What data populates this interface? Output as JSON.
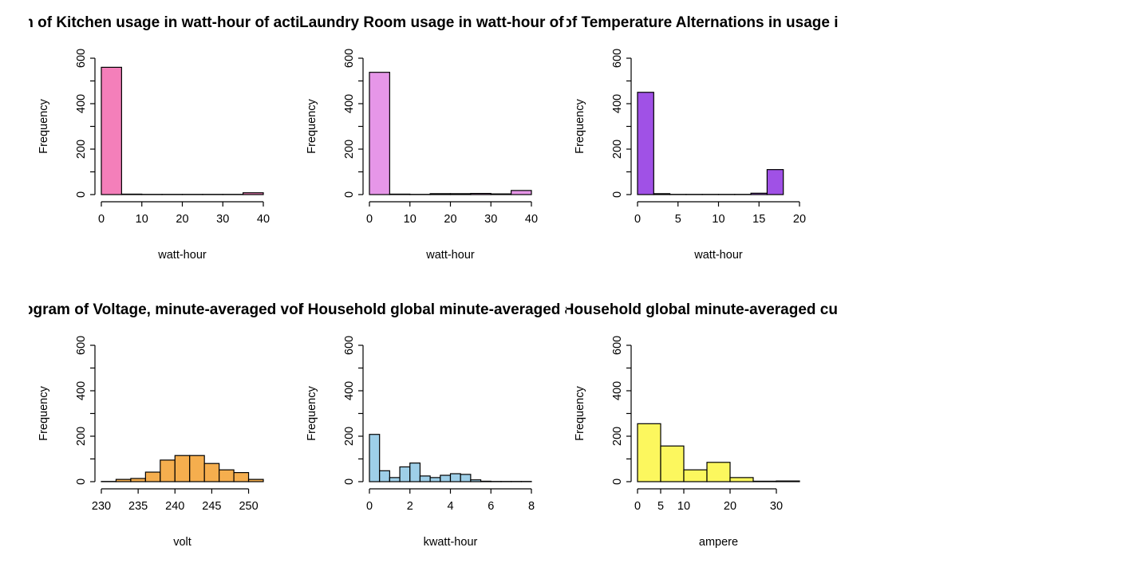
{
  "chart_data": [
    {
      "type": "bar",
      "title": "Histogram of Kitchen usage in watt-hour of active energy",
      "xlabel": "watt-hour",
      "ylabel": "Frequency",
      "color": "#F47FBA",
      "bins": [
        [
          0,
          5
        ],
        [
          5,
          10
        ],
        [
          10,
          15
        ],
        [
          15,
          20
        ],
        [
          20,
          25
        ],
        [
          25,
          30
        ],
        [
          30,
          35
        ],
        [
          35,
          40
        ]
      ],
      "values": [
        560,
        2,
        1,
        1,
        1,
        1,
        1,
        8
      ],
      "xlim": [
        0,
        40
      ],
      "ylim": [
        0,
        600
      ],
      "xticks": [
        0,
        10,
        20,
        30,
        40
      ],
      "yticks": [
        0,
        200,
        400,
        600
      ],
      "yminor": [
        100,
        300,
        500
      ]
    },
    {
      "type": "bar",
      "title": "Histogram of Laundry Room usage in watt-hour of active energy",
      "xlabel": "watt-hour",
      "ylabel": "Frequency",
      "color": "#E696E8",
      "bins": [
        [
          0,
          5
        ],
        [
          5,
          10
        ],
        [
          10,
          15
        ],
        [
          15,
          20
        ],
        [
          20,
          25
        ],
        [
          25,
          30
        ],
        [
          30,
          35
        ],
        [
          35,
          40
        ]
      ],
      "values": [
        538,
        2,
        1,
        4,
        4,
        5,
        3,
        18
      ],
      "xlim": [
        0,
        40
      ],
      "ylim": [
        0,
        600
      ],
      "xticks": [
        0,
        10,
        20,
        30,
        40
      ],
      "yticks": [
        0,
        200,
        400,
        600
      ],
      "yminor": [
        100,
        300,
        500
      ]
    },
    {
      "type": "bar",
      "title": "Histogram of Temperature Alternations in usage in watt-hour",
      "xlabel": "watt-hour",
      "ylabel": "Frequency",
      "color": "#A051E6",
      "bins": [
        [
          0,
          2
        ],
        [
          2,
          4
        ],
        [
          4,
          6
        ],
        [
          6,
          8
        ],
        [
          8,
          10
        ],
        [
          10,
          12
        ],
        [
          12,
          14
        ],
        [
          14,
          16
        ],
        [
          16,
          18
        ],
        [
          18,
          20
        ]
      ],
      "values": [
        450,
        4,
        1,
        1,
        1,
        1,
        1,
        6,
        110,
        0
      ],
      "xlim": [
        0,
        20
      ],
      "ylim": [
        0,
        600
      ],
      "xticks": [
        0,
        5,
        10,
        15,
        20
      ],
      "yticks": [
        0,
        200,
        400,
        600
      ],
      "yminor": [
        100,
        300,
        500
      ]
    },
    {
      "type": "bar",
      "title": "Histogram of Voltage, minute-averaged voltage",
      "xlabel": "volt",
      "ylabel": "Frequency",
      "color": "#F5AE4E",
      "bins": [
        [
          230,
          232
        ],
        [
          232,
          234
        ],
        [
          234,
          236
        ],
        [
          236,
          238
        ],
        [
          238,
          240
        ],
        [
          240,
          242
        ],
        [
          242,
          244
        ],
        [
          244,
          246
        ],
        [
          246,
          248
        ],
        [
          248,
          250
        ],
        [
          250,
          252
        ]
      ],
      "values": [
        1,
        10,
        14,
        42,
        95,
        115,
        115,
        80,
        52,
        40,
        10
      ],
      "xlim": [
        230,
        252
      ],
      "ylim": [
        0,
        600
      ],
      "xticks": [
        230,
        235,
        240,
        245,
        250
      ],
      "yticks": [
        0,
        200,
        400,
        600
      ],
      "yminor": [
        100,
        300,
        500
      ]
    },
    {
      "type": "bar",
      "title": "Histogram of Household global minute-averaged active power",
      "xlabel": "kwatt-hour",
      "ylabel": "Frequency",
      "color": "#9ECFE8",
      "bins": [
        [
          0,
          0.5
        ],
        [
          0.5,
          1
        ],
        [
          1,
          1.5
        ],
        [
          1.5,
          2
        ],
        [
          2,
          2.5
        ],
        [
          2.5,
          3
        ],
        [
          3,
          3.5
        ],
        [
          3.5,
          4
        ],
        [
          4,
          4.5
        ],
        [
          4.5,
          5
        ],
        [
          5,
          5.5
        ],
        [
          5.5,
          6
        ],
        [
          6,
          6.5
        ],
        [
          6.5,
          7
        ],
        [
          7,
          7.5
        ],
        [
          7.5,
          8
        ]
      ],
      "values": [
        208,
        48,
        18,
        65,
        82,
        25,
        18,
        28,
        35,
        32,
        8,
        2,
        1,
        1,
        1,
        1
      ],
      "xlim": [
        0,
        8
      ],
      "ylim": [
        0,
        600
      ],
      "xticks": [
        0,
        2,
        4,
        6,
        8
      ],
      "yticks": [
        0,
        200,
        400,
        600
      ],
      "yminor": [
        100,
        300,
        500
      ]
    },
    {
      "type": "bar",
      "title": "Histogram of Household global minute-averaged current intensity",
      "xlabel": "ampere",
      "ylabel": "Frequency",
      "color": "#FCF75E",
      "bins": [
        [
          0,
          5
        ],
        [
          5,
          10
        ],
        [
          10,
          15
        ],
        [
          15,
          20
        ],
        [
          20,
          25
        ],
        [
          25,
          30
        ],
        [
          30,
          35
        ]
      ],
      "values": [
        255,
        157,
        52,
        85,
        18,
        2,
        3
      ],
      "xlim": [
        0,
        35
      ],
      "ylim": [
        0,
        600
      ],
      "xticks": [
        0,
        5,
        10,
        20,
        30
      ],
      "yticks": [
        0,
        200,
        400,
        600
      ],
      "yminor": [
        100,
        300,
        500
      ]
    }
  ]
}
